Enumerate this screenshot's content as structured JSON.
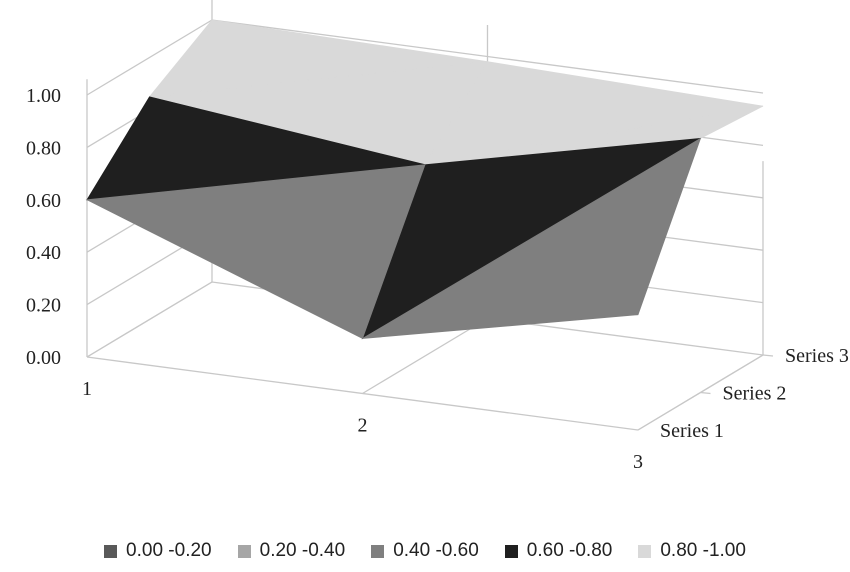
{
  "chart_data": {
    "type": "surface",
    "categories": [
      "1",
      "2",
      "3"
    ],
    "series": [
      {
        "name": "Series 1",
        "values": [
          0.6,
          0.21,
          0.44
        ]
      },
      {
        "name": "Series 2",
        "values": [
          0.85,
          0.73,
          0.97
        ]
      },
      {
        "name": "Series 3",
        "values": [
          1.0,
          0.98,
          0.95
        ]
      }
    ],
    "zlim": [
      0,
      1
    ],
    "z_tick_labels": [
      "0.00",
      "0.20",
      "0.40",
      "0.60",
      "0.80",
      "1.00"
    ],
    "grid": true,
    "legend_position": "bottom",
    "legend": [
      {
        "label": "0.00 -0.20",
        "color": "#595959"
      },
      {
        "label": "0.20 -0.40",
        "color": "#a6a6a6"
      },
      {
        "label": "0.40 -0.60",
        "color": "#7f7f7f"
      },
      {
        "label": "0.60 -0.80",
        "color": "#1f1f1f"
      },
      {
        "label": "0.80 -1.00",
        "color": "#d9d9d9"
      }
    ]
  }
}
